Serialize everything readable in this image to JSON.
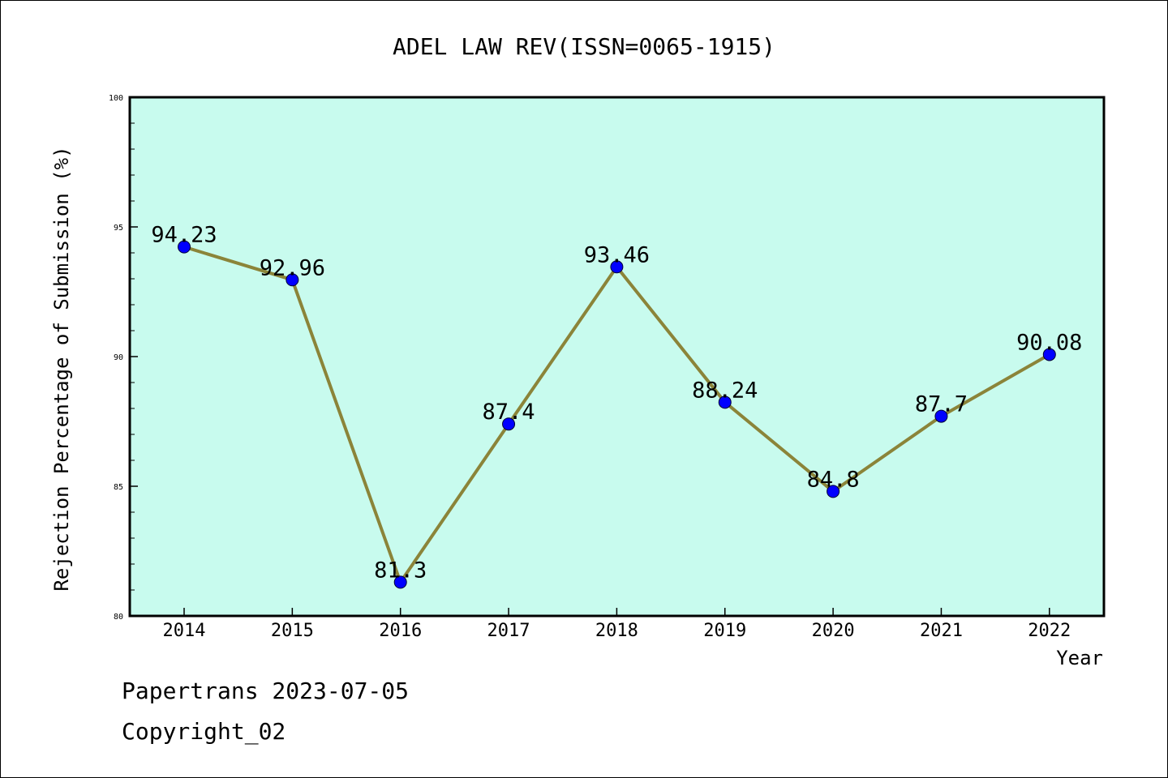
{
  "chart_data": {
    "type": "line",
    "title": "ADEL LAW REV(ISSN=0065-1915)",
    "xlabel": "Year",
    "ylabel": "Rejection Percentage of Submission (%)",
    "categories": [
      "2014",
      "2015",
      "2016",
      "2017",
      "2018",
      "2019",
      "2020",
      "2021",
      "2022"
    ],
    "values": [
      94.23,
      92.96,
      81.3,
      87.4,
      93.46,
      88.24,
      84.8,
      87.7,
      90.08
    ],
    "data_labels": [
      "94.23",
      "92.96",
      "81.3",
      "87.4",
      "93.46",
      "88.24",
      "84.8",
      "87.7",
      "90.08"
    ],
    "ylim": [
      80,
      100
    ],
    "yticks": [
      80,
      85,
      90,
      95,
      100
    ],
    "grid": false,
    "legend": "none",
    "colors": {
      "plot_background": "#c8fbee",
      "line": "#8b8439",
      "marker": "#0000ff"
    }
  },
  "footer": {
    "line1": "Papertrans 2023-07-05",
    "line2": "Copyright_02"
  }
}
